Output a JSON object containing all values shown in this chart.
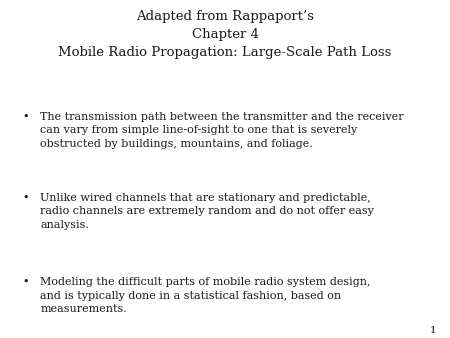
{
  "title_line1": "Adapted from Rappaport’s",
  "title_line2": "Chapter 4",
  "title_line3": "Mobile Radio Propagation: Large-Scale Path Loss",
  "bullets": [
    "The transmission path between the transmitter and the receiver\ncan vary from simple line-of-sight to one that is severely\nobstructed by buildings, mountains, and foliage.",
    "Unlike wired channels that are stationary and predictable,\nradio channels are extremely random and do not offer easy\nanalysis.",
    "Modeling the difficult parts of mobile radio system design,\nand is typically done in a statistical fashion, based on\nmeasurements."
  ],
  "page_number": "1",
  "background_color": "#ffffff",
  "text_color": "#1a1a1a",
  "title_fontsize": 9.5,
  "body_fontsize": 8.0,
  "bullet_char": "•"
}
